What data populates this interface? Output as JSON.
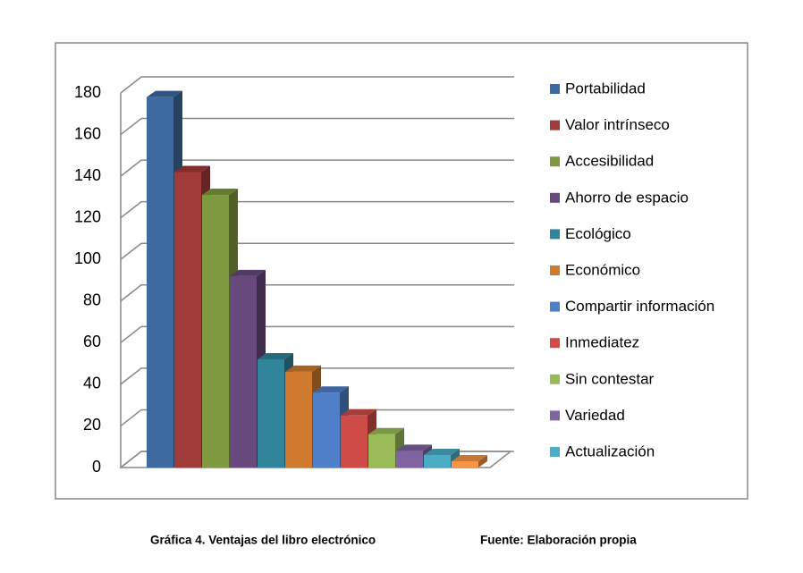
{
  "chart_data": {
    "type": "bar",
    "series": [
      {
        "name": "Portabilidad",
        "color": "#3d6aa0",
        "values": [
          178
        ]
      },
      {
        "name": "Valor intrínseco",
        "color": "#a13b3a",
        "values": [
          142
        ]
      },
      {
        "name": "Accesibilidad",
        "color": "#7f9a3e",
        "values": [
          131
        ]
      },
      {
        "name": "Ahorro de espacio",
        "color": "#68497e",
        "values": [
          92
        ]
      },
      {
        "name": "Ecológico",
        "color": "#31859b",
        "values": [
          52
        ]
      },
      {
        "name": "Económico",
        "color": "#d07a30",
        "values": [
          46
        ]
      },
      {
        "name": "Compartir información",
        "color": "#4f7fc9",
        "values": [
          36
        ]
      },
      {
        "name": "Inmediatez",
        "color": "#cf4b48",
        "values": [
          25
        ]
      },
      {
        "name": "Sin contestar",
        "color": "#9bbb59",
        "values": [
          16
        ]
      },
      {
        "name": "Variedad",
        "color": "#8064a2",
        "values": [
          8
        ]
      },
      {
        "name": "Actualización",
        "color": "#4bacc6",
        "values": [
          6
        ]
      },
      {
        "name": null,
        "color": "#f79646",
        "values": [
          3
        ]
      }
    ],
    "ylim": [
      0,
      180
    ],
    "yticks": [
      0,
      20,
      40,
      60,
      80,
      100,
      120,
      140,
      160,
      180
    ],
    "grid": true,
    "legend": "right"
  },
  "caption": "Gráfica 4. Ventajas del libro electrónico",
  "source": "Fuente: Elaboración propia"
}
